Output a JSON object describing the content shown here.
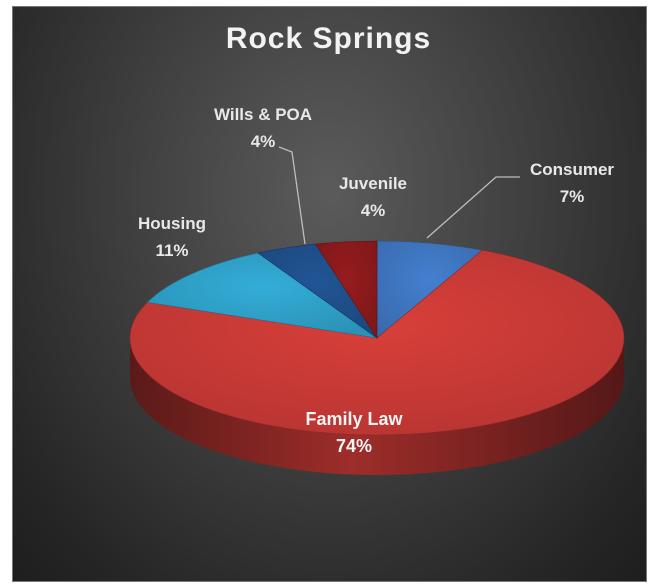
{
  "chart_data": {
    "type": "pie",
    "title": "Rock Springs",
    "slices": [
      {
        "label": "Consumer",
        "value": 7,
        "pct_label": "7%",
        "color": "#3f76c0"
      },
      {
        "label": "Family Law",
        "value": 74,
        "pct_label": "74%",
        "color": "#c93a36"
      },
      {
        "label": "Housing",
        "value": 11,
        "pct_label": "11%",
        "color": "#2fa0c8"
      },
      {
        "label": "Wills & POA",
        "value": 4,
        "pct_label": "4%",
        "color": "#1f4f8a"
      },
      {
        "label": "Juvenile",
        "value": 4,
        "pct_label": "4%",
        "color": "#8b1a1c"
      }
    ],
    "background": "#3a3a3a",
    "legend": "none"
  }
}
